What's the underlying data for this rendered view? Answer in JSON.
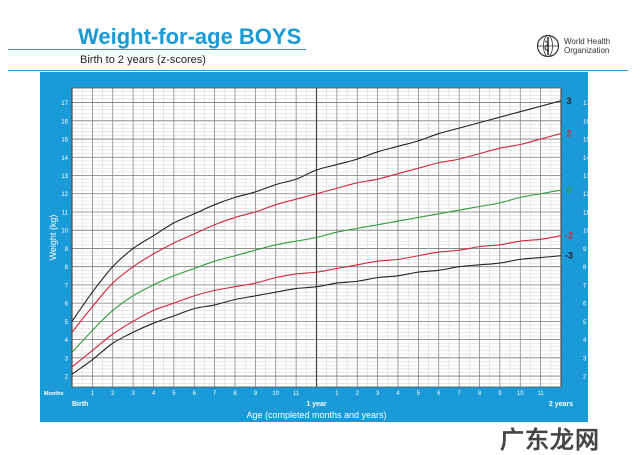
{
  "header": {
    "title": "Weight-for-age BOYS",
    "subtitle": "Birth to 2 years (z-scores)",
    "org_name": "World Health Organization",
    "watermark": "广东龙网"
  },
  "colors": {
    "frame": "#1a9ad6",
    "grid": "#8c8c8c",
    "z0": "#2e9b3c",
    "z2": "#d0273e",
    "z3": "#222222"
  },
  "chart_data": {
    "type": "line",
    "title": "Weight-for-age BOYS",
    "subtitle": "Birth to 2 years (z-scores)",
    "xlabel": "Age (completed months and years)",
    "ylabel": "Weight (kg)",
    "months_label": "Months",
    "xlim": [
      0,
      24
    ],
    "ylim": [
      1.4,
      17.8
    ],
    "y_ticks": [
      2,
      3,
      4,
      5,
      6,
      7,
      8,
      9,
      10,
      11,
      12,
      13,
      14,
      15,
      16,
      17
    ],
    "x_month_ticks": [
      {
        "x": 1,
        "label": "1"
      },
      {
        "x": 2,
        "label": "2"
      },
      {
        "x": 3,
        "label": "3"
      },
      {
        "x": 4,
        "label": "4"
      },
      {
        "x": 5,
        "label": "5"
      },
      {
        "x": 6,
        "label": "6"
      },
      {
        "x": 7,
        "label": "7"
      },
      {
        "x": 8,
        "label": "8"
      },
      {
        "x": 9,
        "label": "9"
      },
      {
        "x": 10,
        "label": "10"
      },
      {
        "x": 11,
        "label": "11"
      },
      {
        "x": 13,
        "label": "1"
      },
      {
        "x": 14,
        "label": "2"
      },
      {
        "x": 15,
        "label": "3"
      },
      {
        "x": 16,
        "label": "4"
      },
      {
        "x": 17,
        "label": "5"
      },
      {
        "x": 18,
        "label": "6"
      },
      {
        "x": 19,
        "label": "7"
      },
      {
        "x": 20,
        "label": "8"
      },
      {
        "x": 21,
        "label": "9"
      },
      {
        "x": 22,
        "label": "10"
      },
      {
        "x": 23,
        "label": "11"
      }
    ],
    "x_year_ticks": [
      {
        "x": 0,
        "label": "Birth"
      },
      {
        "x": 12,
        "label": "1 year"
      },
      {
        "x": 24,
        "label": "2 years"
      }
    ],
    "x": [
      0,
      1,
      2,
      3,
      4,
      5,
      6,
      7,
      8,
      9,
      10,
      11,
      12,
      13,
      14,
      15,
      16,
      17,
      18,
      19,
      20,
      21,
      22,
      23,
      24
    ],
    "series": [
      {
        "name": "3",
        "color": "#222222",
        "values": [
          5.0,
          6.6,
          8.0,
          9.0,
          9.7,
          10.4,
          10.9,
          11.4,
          11.8,
          12.1,
          12.5,
          12.8,
          13.3,
          13.6,
          13.9,
          14.3,
          14.6,
          14.9,
          15.3,
          15.6,
          15.9,
          16.2,
          16.5,
          16.8,
          17.1
        ]
      },
      {
        "name": "2",
        "color": "#d0273e",
        "values": [
          4.4,
          5.8,
          7.1,
          8.0,
          8.7,
          9.3,
          9.8,
          10.3,
          10.7,
          11.0,
          11.4,
          11.7,
          12.0,
          12.3,
          12.6,
          12.8,
          13.1,
          13.4,
          13.7,
          13.9,
          14.2,
          14.5,
          14.7,
          15.0,
          15.3
        ]
      },
      {
        "name": "0",
        "color": "#2e9b3c",
        "values": [
          3.3,
          4.5,
          5.6,
          6.4,
          7.0,
          7.5,
          7.9,
          8.3,
          8.6,
          8.9,
          9.2,
          9.4,
          9.6,
          9.9,
          10.1,
          10.3,
          10.5,
          10.7,
          10.9,
          11.1,
          11.3,
          11.5,
          11.8,
          12.0,
          12.2
        ]
      },
      {
        "name": "-2",
        "color": "#d0273e",
        "values": [
          2.5,
          3.4,
          4.3,
          5.0,
          5.6,
          6.0,
          6.4,
          6.7,
          6.9,
          7.1,
          7.4,
          7.6,
          7.7,
          7.9,
          8.1,
          8.3,
          8.4,
          8.6,
          8.8,
          8.9,
          9.1,
          9.2,
          9.4,
          9.5,
          9.7
        ]
      },
      {
        "name": "-3",
        "color": "#222222",
        "values": [
          2.1,
          2.9,
          3.8,
          4.4,
          4.9,
          5.3,
          5.7,
          5.9,
          6.2,
          6.4,
          6.6,
          6.8,
          6.9,
          7.1,
          7.2,
          7.4,
          7.5,
          7.7,
          7.8,
          8.0,
          8.1,
          8.2,
          8.4,
          8.5,
          8.6
        ]
      }
    ],
    "grid": true,
    "legend": "series labels at right end of curves"
  }
}
